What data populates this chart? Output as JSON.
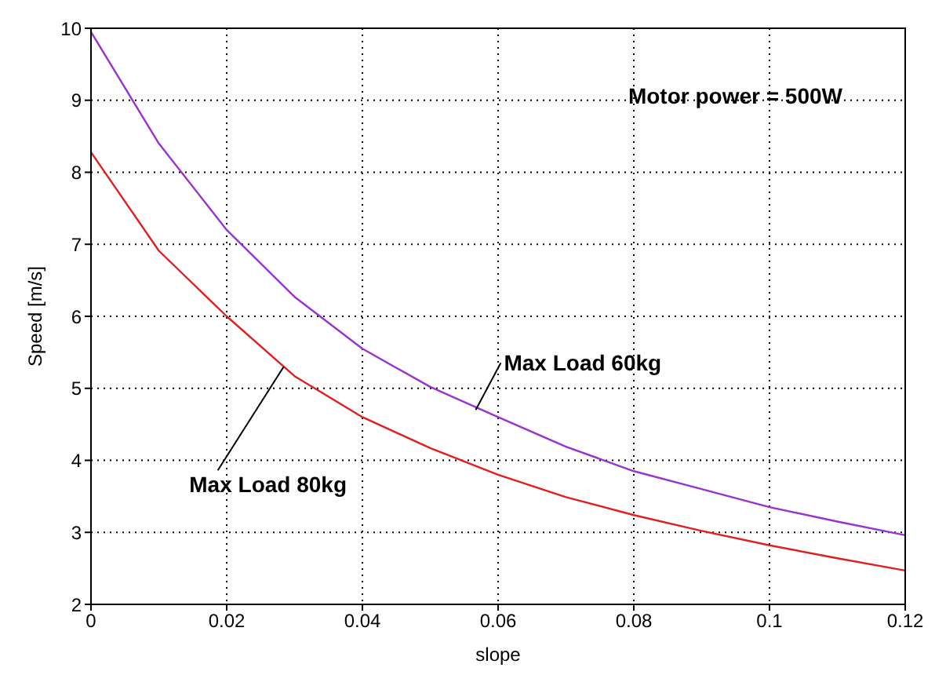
{
  "chart_data": {
    "type": "line",
    "xlabel": "slope",
    "ylabel": "Speed [m/s]",
    "x": [
      0,
      0.01,
      0.02,
      0.03,
      0.04,
      0.05,
      0.06,
      0.07,
      0.08,
      0.09,
      0.1,
      0.11,
      0.12
    ],
    "series": [
      {
        "color": "#9933cc",
        "values": [
          9.95,
          8.4,
          7.2,
          6.27,
          5.55,
          5.02,
          4.6,
          4.19,
          3.85,
          3.6,
          3.35,
          3.15,
          2.96
        ]
      },
      {
        "color": "#e02020",
        "values": [
          8.28,
          6.91,
          6.0,
          5.17,
          4.6,
          4.17,
          3.8,
          3.49,
          3.24,
          3.02,
          2.82,
          2.64,
          2.47
        ]
      }
    ],
    "xlim": [
      0,
      0.12
    ],
    "xticks": [
      0,
      0.02,
      0.04,
      0.06,
      0.08,
      0.1,
      0.12
    ],
    "ylim": [
      2,
      10
    ],
    "yticks": [
      2,
      3,
      4,
      5,
      6,
      7,
      8,
      9,
      10
    ],
    "grid": true,
    "marker": "none",
    "line_style": "solid",
    "annotations": [
      "Motor power = 500W",
      {
        "text": "Max Load 60kg",
        "x": 0.0567,
        "y": 4.7
      },
      {
        "text": "Max Load 80kg",
        "x": 0.0284,
        "y": 5.3
      }
    ]
  }
}
